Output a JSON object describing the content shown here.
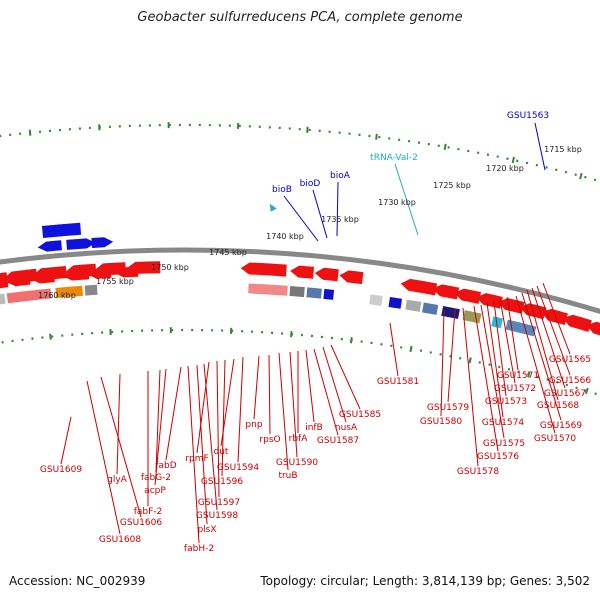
{
  "title": "Geobacter sulfurreducens PCA, complete genome",
  "footer": {
    "accession": "Accession: NC_002939",
    "topology": "Topology: circular; Length: 3,814,139 bp; Genes: 3,502"
  },
  "ruler_ticks": [
    "1715 kbp",
    "1720 kbp",
    "1725 kbp",
    "1730 kbp",
    "1735 kbp",
    "1740 kbp",
    "1745 kbp",
    "1750 kbp",
    "1755 kbp",
    "1760 kbp"
  ],
  "top_labels": [
    {
      "text": "GSU1563",
      "color": "blue"
    },
    {
      "text": "tRNA-Val-2",
      "color": "cyan"
    },
    {
      "text": "bioA",
      "color": "blue"
    },
    {
      "text": "bioD",
      "color": "blue"
    },
    {
      "text": "bioB",
      "color": "blue"
    }
  ],
  "bottom_labels": [
    "GSU1565",
    "GSU1566",
    "GSU1567",
    "GSU1568",
    "GSU1569",
    "GSU1570",
    "GSU1571",
    "GSU1572",
    "GSU1573",
    "GSU1574",
    "GSU1575",
    "GSU1576",
    "GSU1578",
    "GSU1579",
    "GSU1580",
    "GSU1581",
    "GSU1585",
    "nusA",
    "GSU1587",
    "infB",
    "rbfA",
    "GSU1590",
    "truB",
    "rpsO",
    "pnp",
    "GSU1594",
    "dut",
    "GSU1596",
    "GSU1597",
    "rpmF",
    "GSU1598",
    "plsX",
    "fabH-2",
    "fabD",
    "acpP",
    "fabG-2",
    "fabF-2",
    "glyA",
    "GSU1606",
    "GSU1608",
    "GSU1609"
  ],
  "colors": {
    "forward_gene": "#ee1111",
    "reverse_gene": "#ee1111",
    "backbone": "#888888",
    "ruler": "#338833",
    "bio_genes": "#1111dd",
    "trna": "#22aacc"
  }
}
